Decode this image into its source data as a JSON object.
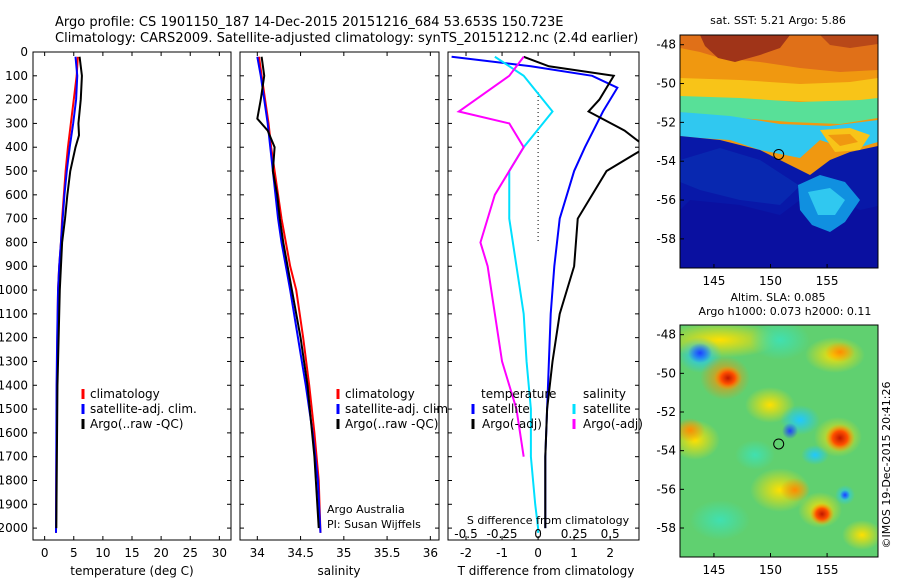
{
  "header": {
    "line1": "Argo profile: CS 1901150_187 14-Dec-2015 20151216_684 53.653S 150.723E",
    "line2": "Climatology: CARS2009. Satellite-adjusted climatology: synTS_20151212.nc (2.4d earlier)"
  },
  "watermark": "©IMOS 19-Dec-2015 20:41:26",
  "chart_data": [
    {
      "type": "line",
      "id": "temperature",
      "xlabel": "temperature (deg C)",
      "ylabel": "",
      "xlim": [
        -2,
        32
      ],
      "ylim": [
        2050,
        0
      ],
      "xticks": [
        0,
        5,
        10,
        15,
        20,
        25,
        30
      ],
      "yticks": [
        0,
        100,
        200,
        300,
        400,
        500,
        600,
        700,
        800,
        900,
        1000,
        1100,
        1200,
        1300,
        1400,
        1500,
        1600,
        1700,
        1800,
        1900,
        2000
      ],
      "legend": [
        "climatology",
        "satellite-adj. clim.",
        "Argo(..raw -QC)"
      ],
      "colors": [
        "#ff0000",
        "#0000ff",
        "#000000"
      ],
      "series": [
        {
          "name": "climatology",
          "x": [
            5.7,
            5.5,
            5.0,
            4.5,
            4.0,
            3.6,
            3.3,
            3.0,
            2.8,
            2.5,
            2.3,
            2.2,
            2.1,
            2.05,
            2.0,
            1.95
          ],
          "y": [
            20,
            100,
            200,
            300,
            400,
            500,
            600,
            700,
            800,
            900,
            1000,
            1200,
            1400,
            1600,
            1800,
            2020
          ]
        },
        {
          "name": "satellite-adj. clim.",
          "x": [
            5.3,
            5.6,
            5.4,
            4.9,
            4.3,
            3.8,
            3.4,
            3.1,
            2.8,
            2.5,
            2.3,
            2.15,
            2.05,
            2.0,
            1.95
          ],
          "y": [
            20,
            100,
            200,
            300,
            400,
            500,
            600,
            700,
            800,
            900,
            1000,
            1200,
            1400,
            1700,
            2020
          ]
        },
        {
          "name": "Argo(..raw -QC)",
          "x": [
            6.0,
            6.2,
            6.4,
            6.2,
            5.8,
            5.9,
            5.3,
            4.4,
            3.9,
            3.5,
            3.0,
            2.6,
            2.4,
            2.2,
            2.1,
            2.0
          ],
          "y": [
            20,
            60,
            100,
            200,
            300,
            350,
            400,
            500,
            600,
            700,
            800,
            1000,
            1200,
            1400,
            1700,
            2000
          ]
        }
      ]
    },
    {
      "type": "line",
      "id": "salinity",
      "xlabel": "salinity",
      "ylabel": "",
      "xlim": [
        33.8,
        36.1
      ],
      "ylim": [
        2050,
        0
      ],
      "xticks": [
        34,
        34.5,
        35,
        35.5,
        36
      ],
      "legend": [
        "climatology",
        "satellite-adj. clim.",
        "Argo(..raw -QC)"
      ],
      "colors": [
        "#ff0000",
        "#0000ff",
        "#000000"
      ],
      "annotations": [
        "Argo Australia",
        "PI: Susan Wijffels"
      ],
      "series": [
        {
          "name": "climatology",
          "x": [
            34.02,
            34.05,
            34.09,
            34.13,
            34.16,
            34.2,
            34.24,
            34.28,
            34.33,
            34.38,
            34.45,
            34.53,
            34.6,
            34.66,
            34.71,
            34.73
          ],
          "y": [
            20,
            100,
            200,
            300,
            400,
            500,
            600,
            700,
            800,
            900,
            1000,
            1200,
            1400,
            1600,
            1800,
            2020
          ]
        },
        {
          "name": "satellite-adj. clim.",
          "x": [
            34.0,
            34.04,
            34.08,
            34.12,
            34.15,
            34.18,
            34.21,
            34.24,
            34.28,
            34.33,
            34.38,
            34.47,
            34.56,
            34.64,
            34.7,
            34.73
          ],
          "y": [
            20,
            100,
            200,
            300,
            400,
            500,
            600,
            700,
            800,
            900,
            1000,
            1200,
            1400,
            1600,
            1800,
            2020
          ]
        },
        {
          "name": "Argo(..raw -QC)",
          "x": [
            34.05,
            34.08,
            34.04,
            34.0,
            34.12,
            34.2,
            34.18,
            34.23,
            34.26,
            34.3,
            34.35,
            34.4,
            34.5,
            34.58,
            34.66,
            34.71
          ],
          "y": [
            20,
            100,
            200,
            280,
            330,
            400,
            500,
            600,
            700,
            800,
            900,
            1000,
            1200,
            1400,
            1700,
            2000
          ]
        }
      ]
    },
    {
      "type": "line",
      "id": "difference",
      "xlabel": "T difference from climatology",
      "xlabel2": "S difference from climatology",
      "ylabel": "",
      "xlim": [
        -2.5,
        2.8
      ],
      "ylim": [
        2050,
        0
      ],
      "xticks": [
        -2,
        -1,
        0,
        1,
        2
      ],
      "x2ticks": [
        "-0.5",
        "-0.25",
        "0",
        "0.25",
        "0.5"
      ],
      "legend_groups": [
        {
          "title": "temperature",
          "items": [
            "satellite",
            "Argo(-adj)"
          ],
          "colors": [
            "#0000ff",
            "#000000"
          ]
        },
        {
          "title": "salinity",
          "items": [
            "satellite",
            "Argo(-adj)"
          ],
          "colors": [
            "#00e0ff",
            "#ff00ff"
          ]
        }
      ],
      "series": [
        {
          "name": "temperature satellite",
          "x": [
            -2.4,
            -0.2,
            1.5,
            2.2,
            1.8,
            1.3,
            1.0,
            0.6,
            0.45,
            0.35,
            0.3,
            0.25,
            0.2,
            0.2
          ],
          "y": [
            20,
            60,
            100,
            150,
            250,
            400,
            500,
            700,
            900,
            1100,
            1300,
            1500,
            1700,
            2000
          ]
        },
        {
          "name": "temperature Argo(-adj)",
          "x": [
            -0.4,
            0.3,
            2.1,
            1.7,
            1.4,
            2.4,
            3.0,
            1.9,
            1.1,
            1.0,
            0.6,
            0.4,
            0.25,
            0.2,
            0.2
          ],
          "y": [
            20,
            60,
            100,
            200,
            250,
            330,
            400,
            500,
            700,
            900,
            1100,
            1300,
            1500,
            1700,
            2000
          ]
        },
        {
          "name": "salinity satellite",
          "x": [
            -0.3,
            -0.1,
            0.1,
            -0.1,
            -0.2,
            -0.2,
            -0.15,
            -0.1,
            -0.08,
            -0.05,
            -0.05,
            -0.02,
            0.0,
            0.0
          ],
          "y": [
            20,
            100,
            250,
            400,
            500,
            700,
            900,
            1100,
            1300,
            1500,
            1700,
            1900,
            2000,
            2020
          ]
        },
        {
          "name": "salinity Argo(-adj)",
          "x": [
            -0.1,
            -0.2,
            -0.55,
            -0.2,
            -0.1,
            -0.3,
            -0.4,
            -0.35,
            -0.3,
            -0.25,
            -0.15,
            -0.1
          ],
          "y": [
            20,
            100,
            250,
            300,
            400,
            600,
            800,
            900,
            1100,
            1300,
            1500,
            1700
          ]
        }
      ]
    },
    {
      "type": "heatmap",
      "id": "sst_map",
      "title": "sat. SST: 5.21  Argo: 5.86",
      "xticks": [
        "145",
        "150",
        "155"
      ],
      "yticks": [
        "-48",
        "-50",
        "-52",
        "-54",
        "-56",
        "-58"
      ],
      "xlim": [
        142,
        159.5
      ],
      "ylim": [
        -59.5,
        -47.5
      ],
      "marker": [
        150.723,
        -53.653
      ]
    },
    {
      "type": "heatmap",
      "id": "sla_map",
      "title": "Altim. SLA: 0.085",
      "subtitle": "Argo h1000: 0.073 h2000: 0.11",
      "xticks": [
        "145",
        "150",
        "155"
      ],
      "yticks": [
        "-48",
        "-50",
        "-52",
        "-54",
        "-56",
        "-58"
      ],
      "xlim": [
        142,
        159.5
      ],
      "ylim": [
        -59.5,
        -47.5
      ],
      "marker": [
        150.723,
        -53.653
      ]
    }
  ]
}
